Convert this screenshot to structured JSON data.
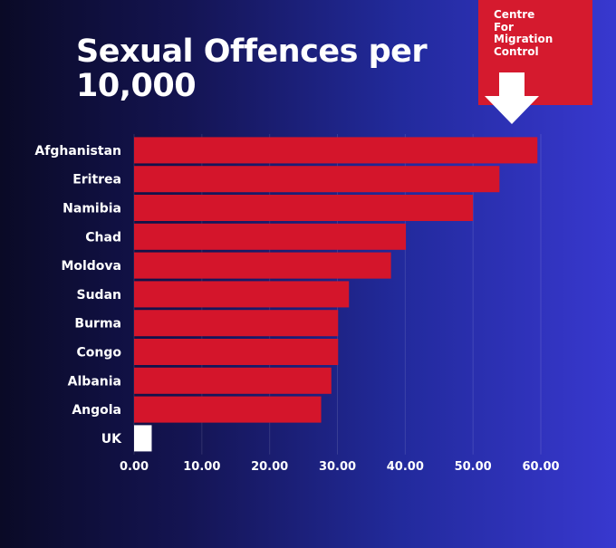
{
  "chart_data": {
    "type": "bar",
    "orientation": "horizontal",
    "title": "Sexual Offences per 10,000",
    "categories": [
      "Afghanistan",
      "Eritrea",
      "Namibia",
      "Chad",
      "Moldova",
      "Sudan",
      "Burma",
      "Congo",
      "Albania",
      "Angola",
      "UK"
    ],
    "values": [
      59.5,
      53.9,
      50.0,
      40.1,
      37.9,
      31.7,
      30.1,
      30.1,
      29.1,
      27.6,
      2.6
    ],
    "xlim": [
      0,
      60
    ],
    "xticks": [
      "0.00",
      "10.00",
      "20.00",
      "30.00",
      "40.00",
      "50.00",
      "60.00"
    ],
    "xlabel": "",
    "ylabel": "",
    "grid": true,
    "colors": {
      "bars": "#d4152b",
      "highlight": "#ffffff"
    }
  },
  "logo": {
    "text": "Centre\nFor\nMigration\nControl",
    "color": "#d51a2e",
    "icon": "down-arrow-icon"
  }
}
